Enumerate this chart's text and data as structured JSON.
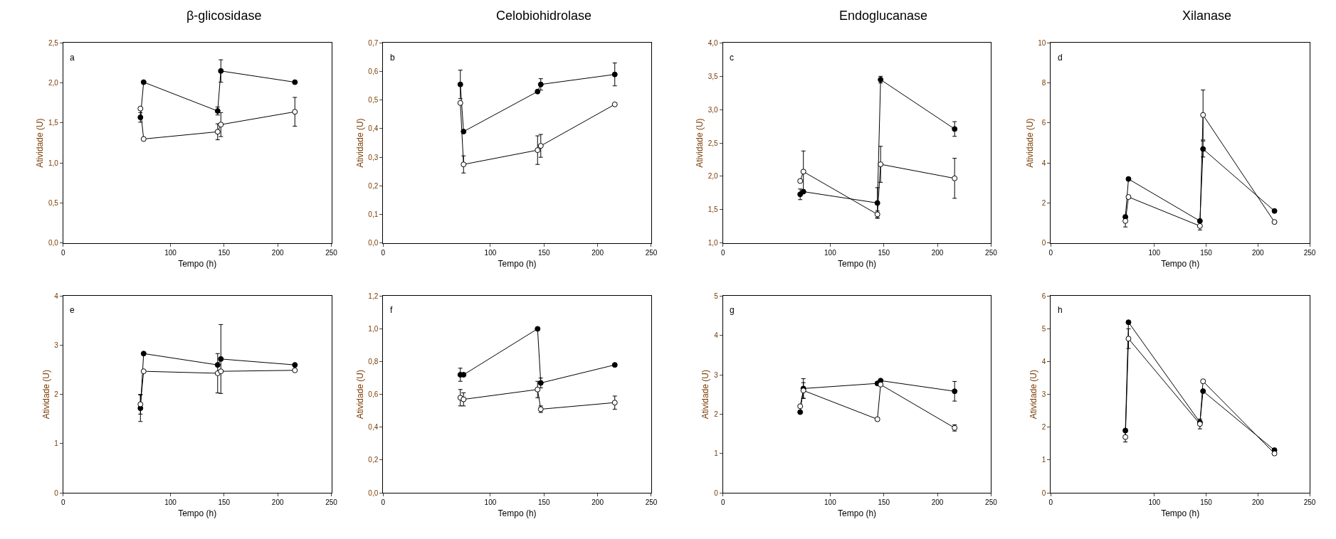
{
  "chart_data": [
    {
      "type": "line",
      "title": "β-glicosidase",
      "annotations": [
        "a"
      ],
      "xlabel": "Tempo (h)",
      "ylabel": "Atividade (U)",
      "x": [
        72,
        75,
        144,
        147,
        216
      ],
      "xlim": [
        0,
        250
      ],
      "xticks": [
        0,
        100,
        150,
        200,
        250
      ],
      "ylim": [
        0,
        2.5
      ],
      "yticks": [
        {
          "value": 0,
          "label": "0,0"
        },
        {
          "value": 0.5,
          "label": "0,5"
        },
        {
          "value": 1,
          "label": "1,0"
        },
        {
          "value": 1.5,
          "label": "1,5"
        },
        {
          "value": 2,
          "label": "2,0"
        },
        {
          "value": 2.5,
          "label": "2,5"
        }
      ],
      "marker": "circle",
      "series": [
        {
          "color": "#000000",
          "values": [
            1.57,
            2.01,
            1.65,
            2.15,
            2.01
          ],
          "errors": [
            0.06,
            null,
            0.05,
            0.14,
            null
          ]
        },
        {
          "color": "#ffffff",
          "values": [
            1.68,
            1.3,
            1.39,
            1.48,
            1.64
          ],
          "errors": [
            null,
            null,
            0.1,
            0.15,
            0.18
          ]
        }
      ]
    },
    {
      "type": "line",
      "title": "Celobiohidrolase",
      "annotations": [
        "b"
      ],
      "xlabel": "Tempo (h)",
      "ylabel": "Atividade (U)",
      "x": [
        72,
        75,
        144,
        147,
        216
      ],
      "xlim": [
        0,
        250
      ],
      "xticks": [
        0,
        100,
        150,
        200,
        250
      ],
      "ylim": [
        0,
        0.7
      ],
      "yticks": [
        {
          "value": 0,
          "label": "0,0"
        },
        {
          "value": 0.1,
          "label": "0,1"
        },
        {
          "value": 0.2,
          "label": "0,2"
        },
        {
          "value": 0.3,
          "label": "0,3"
        },
        {
          "value": 0.4,
          "label": "0,4"
        },
        {
          "value": 0.5,
          "label": "0,5"
        },
        {
          "value": 0.6,
          "label": "0,6"
        },
        {
          "value": 0.7,
          "label": "0,7"
        }
      ],
      "marker": "circle",
      "series": [
        {
          "color": "#000000",
          "values": [
            0.555,
            0.39,
            0.53,
            0.555,
            0.59
          ],
          "errors": [
            0.05,
            null,
            null,
            0.02,
            0.04
          ]
        },
        {
          "color": "#ffffff",
          "values": [
            0.49,
            0.275,
            0.325,
            0.34,
            0.485
          ],
          "errors": [
            null,
            0.03,
            0.05,
            0.04,
            null
          ]
        }
      ]
    },
    {
      "type": "line",
      "title": "Endoglucanase",
      "annotations": [
        "c"
      ],
      "xlabel": "Tempo (h)",
      "ylabel": "Atividade (U)",
      "x": [
        72,
        75,
        144,
        147,
        216
      ],
      "xlim": [
        0,
        250
      ],
      "xticks": [
        0,
        100,
        150,
        200,
        250
      ],
      "ylim": [
        1,
        4
      ],
      "yticks": [
        {
          "value": 1,
          "label": "1,0"
        },
        {
          "value": 1.5,
          "label": "1,5"
        },
        {
          "value": 2,
          "label": "2,0"
        },
        {
          "value": 2.5,
          "label": "2,5"
        },
        {
          "value": 3,
          "label": "3,0"
        },
        {
          "value": 3.5,
          "label": "3,5"
        },
        {
          "value": 4,
          "label": "4,0"
        }
      ],
      "marker": "circle",
      "series": [
        {
          "color": "#000000",
          "values": [
            1.73,
            1.77,
            1.6,
            3.45,
            2.71
          ],
          "errors": [
            0.08,
            null,
            0.23,
            0.05,
            0.11
          ]
        },
        {
          "color": "#ffffff",
          "values": [
            1.93,
            2.07,
            1.43,
            2.18,
            1.97
          ],
          "errors": [
            null,
            0.31,
            0.05,
            0.27,
            0.3
          ]
        }
      ]
    },
    {
      "type": "line",
      "title": "Xilanase",
      "annotations": [
        "d"
      ],
      "xlabel": "Tempo (h)",
      "ylabel": "Atividade (U)",
      "x": [
        72,
        75,
        144,
        147,
        216
      ],
      "xlim": [
        0,
        250
      ],
      "xticks": [
        0,
        100,
        150,
        200,
        250
      ],
      "ylim": [
        0,
        10
      ],
      "yticks": [
        0,
        2,
        4,
        6,
        8,
        10
      ],
      "marker": "circle",
      "series": [
        {
          "color": "#000000",
          "values": [
            1.3,
            3.2,
            1.1,
            4.7,
            1.6
          ],
          "errors": [
            null,
            null,
            null,
            0.4,
            null
          ]
        },
        {
          "color": "#ffffff",
          "values": [
            1.1,
            2.3,
            0.85,
            6.4,
            1.05
          ],
          "errors": [
            0.3,
            null,
            0.2,
            1.25,
            null
          ]
        }
      ]
    },
    {
      "type": "line",
      "annotations": [
        "e"
      ],
      "xlabel": "Tempo (h)",
      "ylabel": "Atividade (U)",
      "x": [
        72,
        75,
        144,
        147,
        216
      ],
      "xlim": [
        0,
        250
      ],
      "xticks": [
        0,
        100,
        150,
        200,
        250
      ],
      "ylim": [
        0,
        4
      ],
      "yticks": [
        0,
        1,
        2,
        3,
        4
      ],
      "marker": "circle",
      "series": [
        {
          "color": "#000000",
          "values": [
            1.72,
            2.83,
            2.6,
            2.72,
            2.6
          ],
          "errors": [
            0.27,
            null,
            null,
            0.7,
            null
          ]
        },
        {
          "color": "#ffffff",
          "values": [
            1.8,
            2.47,
            2.43,
            2.47,
            2.49
          ],
          "errors": [
            0.2,
            null,
            0.4,
            null,
            null
          ]
        }
      ]
    },
    {
      "type": "line",
      "annotations": [
        "f"
      ],
      "xlabel": "Tempo (h)",
      "ylabel": "Atividade (U)",
      "x": [
        72,
        75,
        144,
        147,
        216
      ],
      "xlim": [
        0,
        250
      ],
      "xticks": [
        0,
        100,
        150,
        200,
        250
      ],
      "ylim": [
        0,
        1.2
      ],
      "yticks": [
        {
          "value": 0,
          "label": "0,0"
        },
        {
          "value": 0.2,
          "label": "0,2"
        },
        {
          "value": 0.4,
          "label": "0,4"
        },
        {
          "value": 0.6,
          "label": "0,6"
        },
        {
          "value": 0.8,
          "label": "0,8"
        },
        {
          "value": 1,
          "label": "1,0"
        },
        {
          "value": 1.2,
          "label": "1,2"
        }
      ],
      "marker": "circle",
      "series": [
        {
          "color": "#000000",
          "values": [
            0.72,
            0.72,
            1.0,
            0.67,
            0.78
          ],
          "errors": [
            0.04,
            null,
            null,
            0.03,
            null
          ]
        },
        {
          "color": "#ffffff",
          "values": [
            0.58,
            0.57,
            0.63,
            0.51,
            0.55
          ],
          "errors": [
            0.05,
            0.04,
            0.05,
            0.02,
            0.04
          ]
        }
      ]
    },
    {
      "type": "line",
      "annotations": [
        "g"
      ],
      "xlabel": "Tempo (h)",
      "ylabel": "Atividade (U)",
      "x": [
        72,
        75,
        144,
        147,
        216
      ],
      "xlim": [
        0,
        250
      ],
      "xticks": [
        0,
        100,
        150,
        200,
        250
      ],
      "ylim": [
        0,
        5
      ],
      "yticks": [
        0,
        1,
        2,
        3,
        4,
        5
      ],
      "marker": "circle",
      "series": [
        {
          "color": "#000000",
          "values": [
            2.05,
            2.65,
            2.78,
            2.85,
            2.58
          ],
          "errors": [
            null,
            0.25,
            null,
            null,
            0.25
          ]
        },
        {
          "color": "#ffffff",
          "values": [
            2.2,
            2.6,
            1.87,
            2.75,
            1.65
          ],
          "errors": [
            null,
            0.2,
            null,
            null,
            0.08
          ]
        }
      ]
    },
    {
      "type": "line",
      "annotations": [
        "h"
      ],
      "xlabel": "Tempo (h)",
      "ylabel": "Atividade (U)",
      "x": [
        72,
        75,
        144,
        147,
        216
      ],
      "xlim": [
        0,
        250
      ],
      "xticks": [
        0,
        100,
        150,
        200,
        250
      ],
      "ylim": [
        0,
        6
      ],
      "yticks": [
        0,
        1,
        2,
        3,
        4,
        5,
        6
      ],
      "marker": "circle",
      "series": [
        {
          "color": "#000000",
          "values": [
            1.9,
            5.2,
            2.15,
            3.1,
            1.3
          ],
          "errors": [
            null,
            null,
            null,
            null,
            null
          ]
        },
        {
          "color": "#ffffff",
          "values": [
            1.7,
            4.7,
            2.1,
            3.4,
            1.2
          ],
          "errors": [
            0.15,
            0.3,
            0.15,
            null,
            null
          ]
        }
      ]
    }
  ]
}
